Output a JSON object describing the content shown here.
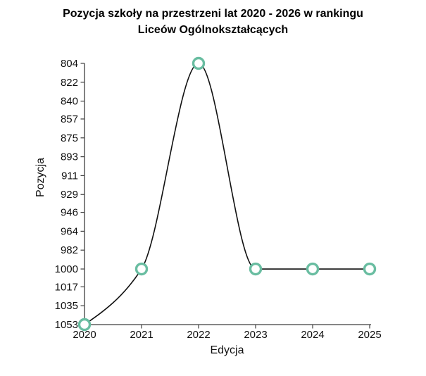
{
  "title": {
    "line1": "Pozycja szkoły na przestrzeni lat 2020 - 2026 w rankingu",
    "line2": "Liceów Ogólnokształcących"
  },
  "chart_data": {
    "type": "line",
    "x": [
      2020,
      2021,
      2022,
      2023,
      2024,
      2025
    ],
    "series": [
      {
        "name": "Pozycja szkoły",
        "values": [
          1053,
          1000,
          804,
          1000,
          1000,
          1000
        ]
      }
    ],
    "xlabel": "Edycja",
    "ylabel": "Pozycja",
    "x_ticks": [
      "2020",
      "2021",
      "2022",
      "2023",
      "2024",
      "2025"
    ],
    "y_ticks": [
      804,
      822,
      840,
      857,
      875,
      893,
      911,
      929,
      946,
      964,
      982,
      1000,
      1017,
      1035,
      1053
    ],
    "xlim": [
      2020,
      2025
    ],
    "ylim": [
      804,
      1053
    ],
    "y_axis_inverted": true,
    "grid": false,
    "legend_position": "none",
    "colors": {
      "line": "#111111",
      "marker_stroke": "#69bda1",
      "marker_fill": "#ffffff",
      "axis": "#3f3f3f",
      "text": "#111111"
    }
  }
}
